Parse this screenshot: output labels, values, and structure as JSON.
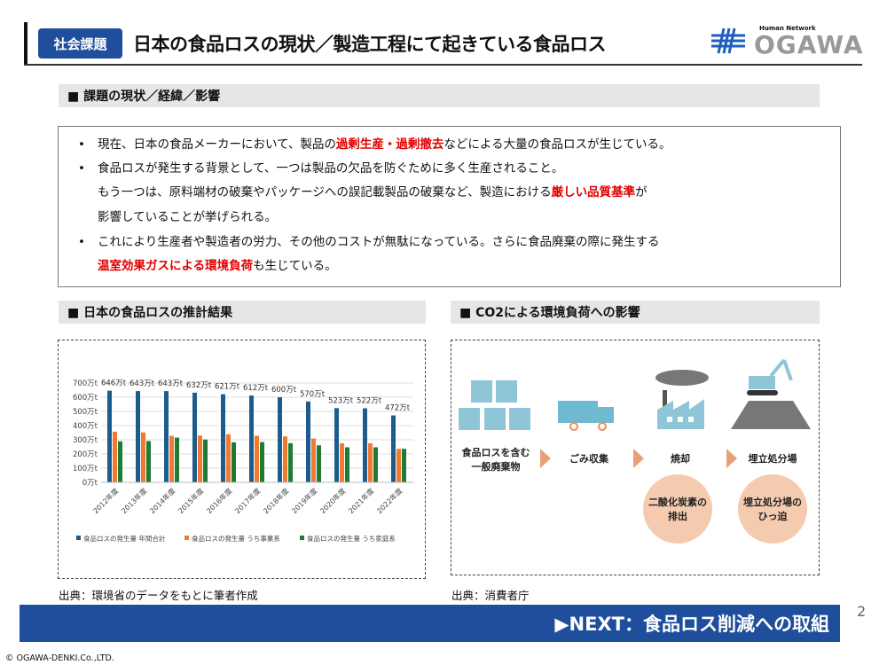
{
  "header": {
    "badge": "社会課題",
    "title": "日本の食品ロスの現状／製造工程にて起きている食品ロス",
    "logo": {
      "tagline": "Human Network",
      "name": "OGAWA"
    }
  },
  "section1": {
    "heading": "■ 課題の現状／経緯／影響",
    "lines": [
      {
        "bullet": "•",
        "parts": [
          "現在、日本の食品メーカーにおいて、製品の",
          "過剰生産・過剰撤去",
          "などによる大量の食品ロスが生じている。"
        ]
      },
      {
        "bullet": "•",
        "parts": [
          "食品ロスが発生する背景として、一つは製品の欠品を防ぐために多く生産されること。"
        ]
      },
      {
        "bullet": "",
        "parts": [
          "もう一つは、原料端材の破棄やパッケージへの誤記載製品の破棄など、製造における",
          "厳しい品質基準",
          "が"
        ]
      },
      {
        "bullet": "",
        "parts": [
          "影響していることが挙げられる。"
        ]
      },
      {
        "bullet": "•",
        "parts": [
          "これにより生産者や製造者の労力、その他のコストが無駄になっている。さらに食品廃棄の際に発生する"
        ]
      },
      {
        "bullet": "",
        "parts": [
          "",
          "温室効果ガスによる環境負荷",
          "も生じている。"
        ]
      }
    ]
  },
  "section2": {
    "heading": "■ 日本の食品ロスの推計結果",
    "source": "出典：環境省のデータをもとに筆者作成"
  },
  "section3": {
    "heading": "■ CO2による環境負荷への影響",
    "source": "出典：消費者庁",
    "steps": [
      {
        "label1": "食品ロスを含む",
        "label2": "一般廃棄物"
      },
      {
        "label1": "ごみ収集",
        "label2": ""
      },
      {
        "label1": "焼却",
        "label2": ""
      },
      {
        "label1": "埋立処分場",
        "label2": ""
      }
    ],
    "impacts": [
      {
        "l1": "二酸化炭素の",
        "l2": "排出"
      },
      {
        "l1": "埋立処分場の",
        "l2": "ひっ迫"
      }
    ]
  },
  "chart_data": {
    "type": "bar",
    "categories": [
      "2012年度",
      "2013年度",
      "2014年度",
      "2015年度",
      "2016年度",
      "2017年度",
      "2018年度",
      "2019年度",
      "2020年度",
      "2021年度",
      "2022年度"
    ],
    "series": [
      {
        "name": "食品ロスの発生量 年間合計",
        "color": "#1d5c8a",
        "values": [
          646,
          643,
          643,
          632,
          621,
          612,
          600,
          570,
          523,
          522,
          472
        ],
        "labels": [
          "646万t",
          "643万t",
          "643万t",
          "632万t",
          "621万t",
          "612万t",
          "600万t",
          "570万t",
          "523万t",
          "522万t",
          "472万t"
        ]
      },
      {
        "name": "食品ロスの発生量 うち事業系",
        "color": "#f07a30",
        "values": [
          357,
          352,
          328,
          330,
          339,
          328,
          324,
          309,
          275,
          275,
          236
        ]
      },
      {
        "name": "食品ロスの発生量 うち家庭系",
        "color": "#1e7a34",
        "values": [
          289,
          291,
          315,
          302,
          282,
          284,
          276,
          261,
          247,
          247,
          236
        ]
      }
    ],
    "yticks": [
      "0万t",
      "100万t",
      "200万t",
      "300万t",
      "400万t",
      "500万t",
      "600万t",
      "700万t"
    ],
    "ylim": [
      0,
      700
    ],
    "grid": true,
    "legend": "bottom"
  },
  "footer": {
    "next": "▶NEXT：食品ロス削減への取組",
    "page": "2",
    "copyright": "© OGAWA-DENKI.Co.,LTD."
  }
}
